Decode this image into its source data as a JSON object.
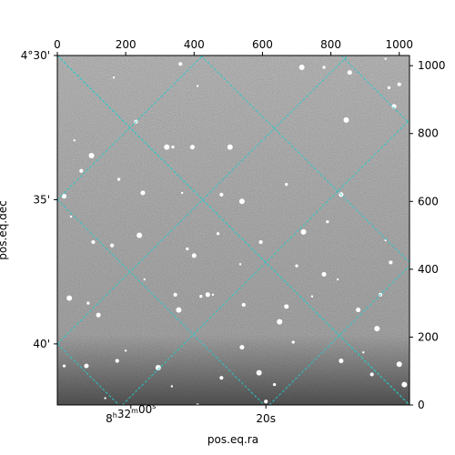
{
  "chart_data": {
    "type": "scatter",
    "subtype": "astronomical image with WCS grid overlay",
    "xlabel": "pos.eq.ra",
    "ylabel": "pos.eq.dec",
    "pixel_axes": {
      "xlim": [
        0,
        1030
      ],
      "ylim": [
        0,
        1030
      ],
      "x_ticks": [
        "0",
        "200",
        "400",
        "600",
        "800",
        "1000"
      ],
      "y_ticks": [
        "0",
        "200",
        "400",
        "600",
        "800",
        "1000"
      ]
    },
    "world_axes": {
      "ra_ticks": [
        {
          "label": "8h32m00s",
          "h": "8",
          "m": "32",
          "s": "00",
          "px": 215
        },
        {
          "label": "20s",
          "px": 610
        }
      ],
      "dec_ticks": [
        {
          "label": "4°30'",
          "py": 1030
        },
        {
          "label": "35'",
          "py": 605
        },
        {
          "label": "40'",
          "py": 180
        }
      ]
    },
    "grid": true,
    "grid_color": "#22cccc",
    "image_colormap": "gray",
    "grid_lines": [
      [
        [
          0,
          1030
        ],
        [
          1030,
          0
        ]
      ],
      [
        [
          0,
          605
        ],
        [
          605,
          0
        ]
      ],
      [
        [
          0,
          180
        ],
        [
          180,
          0
        ]
      ],
      [
        [
          420,
          1030
        ],
        [
          1030,
          420
        ]
      ],
      [
        [
          830,
          1030
        ],
        [
          1030,
          830
        ]
      ],
      [
        [
          0,
          1030
        ],
        [
          1030,
          0
        ]
      ],
      [
        [
          0,
          605
        ],
        [
          425,
          1030
        ]
      ],
      [
        [
          0,
          180
        ],
        [
          850,
          1030
        ]
      ],
      [
        [
          190,
          0
        ],
        [
          1030,
          840
        ]
      ],
      [
        [
          620,
          0
        ],
        [
          1030,
          410
        ]
      ]
    ],
    "sources": [
      [
        165,
        965
      ],
      [
        230,
        835
      ],
      [
        320,
        760
      ],
      [
        338,
        760
      ],
      [
        395,
        760
      ],
      [
        410,
        940
      ],
      [
        360,
        1005
      ],
      [
        715,
        995
      ],
      [
        780,
        995
      ],
      [
        855,
        980
      ],
      [
        960,
        1020
      ],
      [
        1000,
        945
      ],
      [
        845,
        840
      ],
      [
        970,
        935
      ],
      [
        985,
        880
      ],
      [
        50,
        780
      ],
      [
        70,
        690
      ],
      [
        100,
        735
      ],
      [
        180,
        665
      ],
      [
        250,
        625
      ],
      [
        365,
        625
      ],
      [
        480,
        620
      ],
      [
        540,
        600
      ],
      [
        670,
        650
      ],
      [
        20,
        615
      ],
      [
        40,
        555
      ],
      [
        105,
        480
      ],
      [
        240,
        500
      ],
      [
        380,
        460
      ],
      [
        400,
        440
      ],
      [
        535,
        415
      ],
      [
        595,
        480
      ],
      [
        720,
        510
      ],
      [
        790,
        540
      ],
      [
        830,
        620
      ],
      [
        960,
        485
      ],
      [
        975,
        420
      ],
      [
        35,
        315
      ],
      [
        90,
        300
      ],
      [
        120,
        265
      ],
      [
        255,
        370
      ],
      [
        345,
        325
      ],
      [
        355,
        280
      ],
      [
        420,
        320
      ],
      [
        440,
        325
      ],
      [
        455,
        325
      ],
      [
        545,
        295
      ],
      [
        650,
        245
      ],
      [
        700,
        410
      ],
      [
        780,
        385
      ],
      [
        820,
        370
      ],
      [
        945,
        325
      ],
      [
        935,
        225
      ],
      [
        690,
        185
      ],
      [
        540,
        170
      ],
      [
        200,
        160
      ],
      [
        175,
        130
      ],
      [
        295,
        110
      ],
      [
        20,
        115
      ],
      [
        85,
        115
      ],
      [
        335,
        55
      ],
      [
        480,
        80
      ],
      [
        590,
        95
      ],
      [
        635,
        60
      ],
      [
        830,
        130
      ],
      [
        895,
        155
      ],
      [
        920,
        90
      ],
      [
        1000,
        120
      ],
      [
        410,
        0
      ],
      [
        670,
        290
      ],
      [
        745,
        320
      ],
      [
        160,
        470
      ],
      [
        505,
        760
      ],
      [
        470,
        505
      ],
      [
        880,
        280
      ],
      [
        140,
        20
      ],
      [
        610,
        10
      ],
      [
        1015,
        60
      ]
    ]
  }
}
